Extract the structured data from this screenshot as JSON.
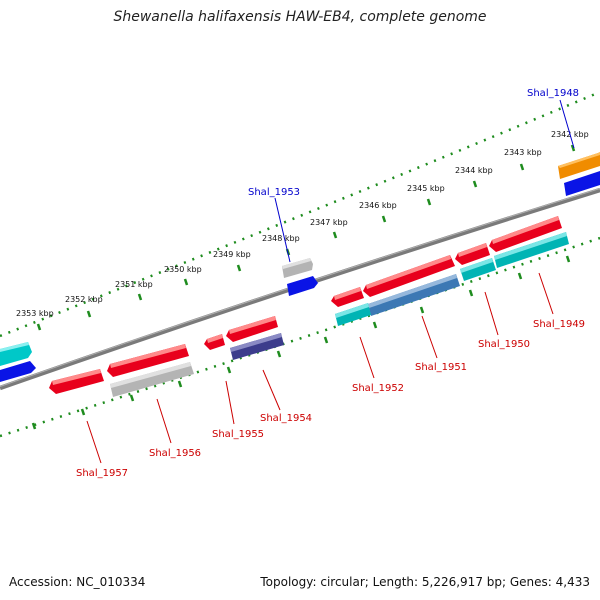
{
  "title": "Shewanella halifaxensis HAW-EB4, complete genome",
  "footer": {
    "accession": "Accession: NC_010334",
    "topology": "Topology: circular; Length: 5,226,917 bp; Genes: 4,433"
  },
  "colors": {
    "forward_gene": "#e8001c",
    "reverse_gene": "#00c8c8",
    "blue_gene": "#0a14e6",
    "grey_gene": "#b4b4b4",
    "purple_gene": "#3c3c8c",
    "orange_gene": "#f08c00",
    "backbone": "#808080",
    "tick": "#1e8c1e",
    "label_red": "#cc0000",
    "label_blue": "#0000cc"
  },
  "scale_labels": [
    "2342 kbp",
    "2343 kbp",
    "2344 kbp",
    "2345 kbp",
    "2346 kbp",
    "2347 kbp",
    "2348 kbp",
    "2349 kbp",
    "2350 kbp",
    "2351 kbp",
    "2352 kbp",
    "2353 kbp"
  ],
  "gene_labels": [
    {
      "name": "Shal_1948",
      "color": "blue"
    },
    {
      "name": "Shal_1953",
      "color": "blue"
    },
    {
      "name": "Shal_1949",
      "color": "red"
    },
    {
      "name": "Shal_1950",
      "color": "red"
    },
    {
      "name": "Shal_1951",
      "color": "red"
    },
    {
      "name": "Shal_1952",
      "color": "red"
    },
    {
      "name": "Shal_1954",
      "color": "red"
    },
    {
      "name": "Shal_1955",
      "color": "red"
    },
    {
      "name": "Shal_1956",
      "color": "red"
    },
    {
      "name": "Shal_1957",
      "color": "red"
    }
  ]
}
